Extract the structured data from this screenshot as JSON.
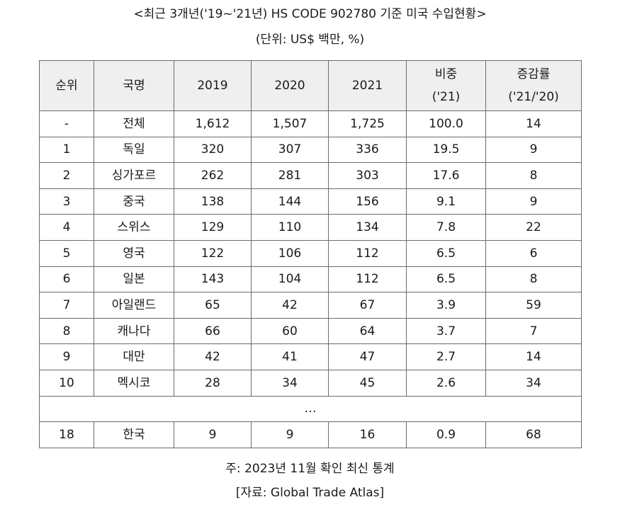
{
  "title": "<최근 3개년('19~'21년) HS CODE 902780 기준 미국 수입현황>",
  "unit": "(단위: US$ 백만, %)",
  "table": {
    "headers": {
      "rank": "순위",
      "country": "국명",
      "y2019": "2019",
      "y2020": "2020",
      "y2021": "2021",
      "share_line1": "비중",
      "share_line2": "('21)",
      "change_line1": "증감률",
      "change_line2": "('21/'20)"
    },
    "rows": [
      {
        "rank": "-",
        "country": "전체",
        "y2019": "1,612",
        "y2020": "1,507",
        "y2021": "1,725",
        "share": "100.0",
        "change": "14"
      },
      {
        "rank": "1",
        "country": "독일",
        "y2019": "320",
        "y2020": "307",
        "y2021": "336",
        "share": "19.5",
        "change": "9"
      },
      {
        "rank": "2",
        "country": "싱가포르",
        "y2019": "262",
        "y2020": "281",
        "y2021": "303",
        "share": "17.6",
        "change": "8"
      },
      {
        "rank": "3",
        "country": "중국",
        "y2019": "138",
        "y2020": "144",
        "y2021": "156",
        "share": "9.1",
        "change": "9"
      },
      {
        "rank": "4",
        "country": "스위스",
        "y2019": "129",
        "y2020": "110",
        "y2021": "134",
        "share": "7.8",
        "change": "22"
      },
      {
        "rank": "5",
        "country": "영국",
        "y2019": "122",
        "y2020": "106",
        "y2021": "112",
        "share": "6.5",
        "change": "6"
      },
      {
        "rank": "6",
        "country": "일본",
        "y2019": "143",
        "y2020": "104",
        "y2021": "112",
        "share": "6.5",
        "change": "8"
      },
      {
        "rank": "7",
        "country": "아일랜드",
        "y2019": "65",
        "y2020": "42",
        "y2021": "67",
        "share": "3.9",
        "change": "59"
      },
      {
        "rank": "8",
        "country": "캐나다",
        "y2019": "66",
        "y2020": "60",
        "y2021": "64",
        "share": "3.7",
        "change": "7"
      },
      {
        "rank": "9",
        "country": "대만",
        "y2019": "42",
        "y2020": "41",
        "y2021": "47",
        "share": "2.7",
        "change": "14"
      },
      {
        "rank": "10",
        "country": "멕시코",
        "y2019": "28",
        "y2020": "34",
        "y2021": "45",
        "share": "2.6",
        "change": "34"
      }
    ],
    "ellipsis": "…",
    "last_row": {
      "rank": "18",
      "country": "한국",
      "y2019": "9",
      "y2020": "9",
      "y2021": "16",
      "share": "0.9",
      "change": "68"
    }
  },
  "note": "주: 2023년 11월 확인 최신 통계",
  "source": "[자료: Global Trade Atlas]"
}
